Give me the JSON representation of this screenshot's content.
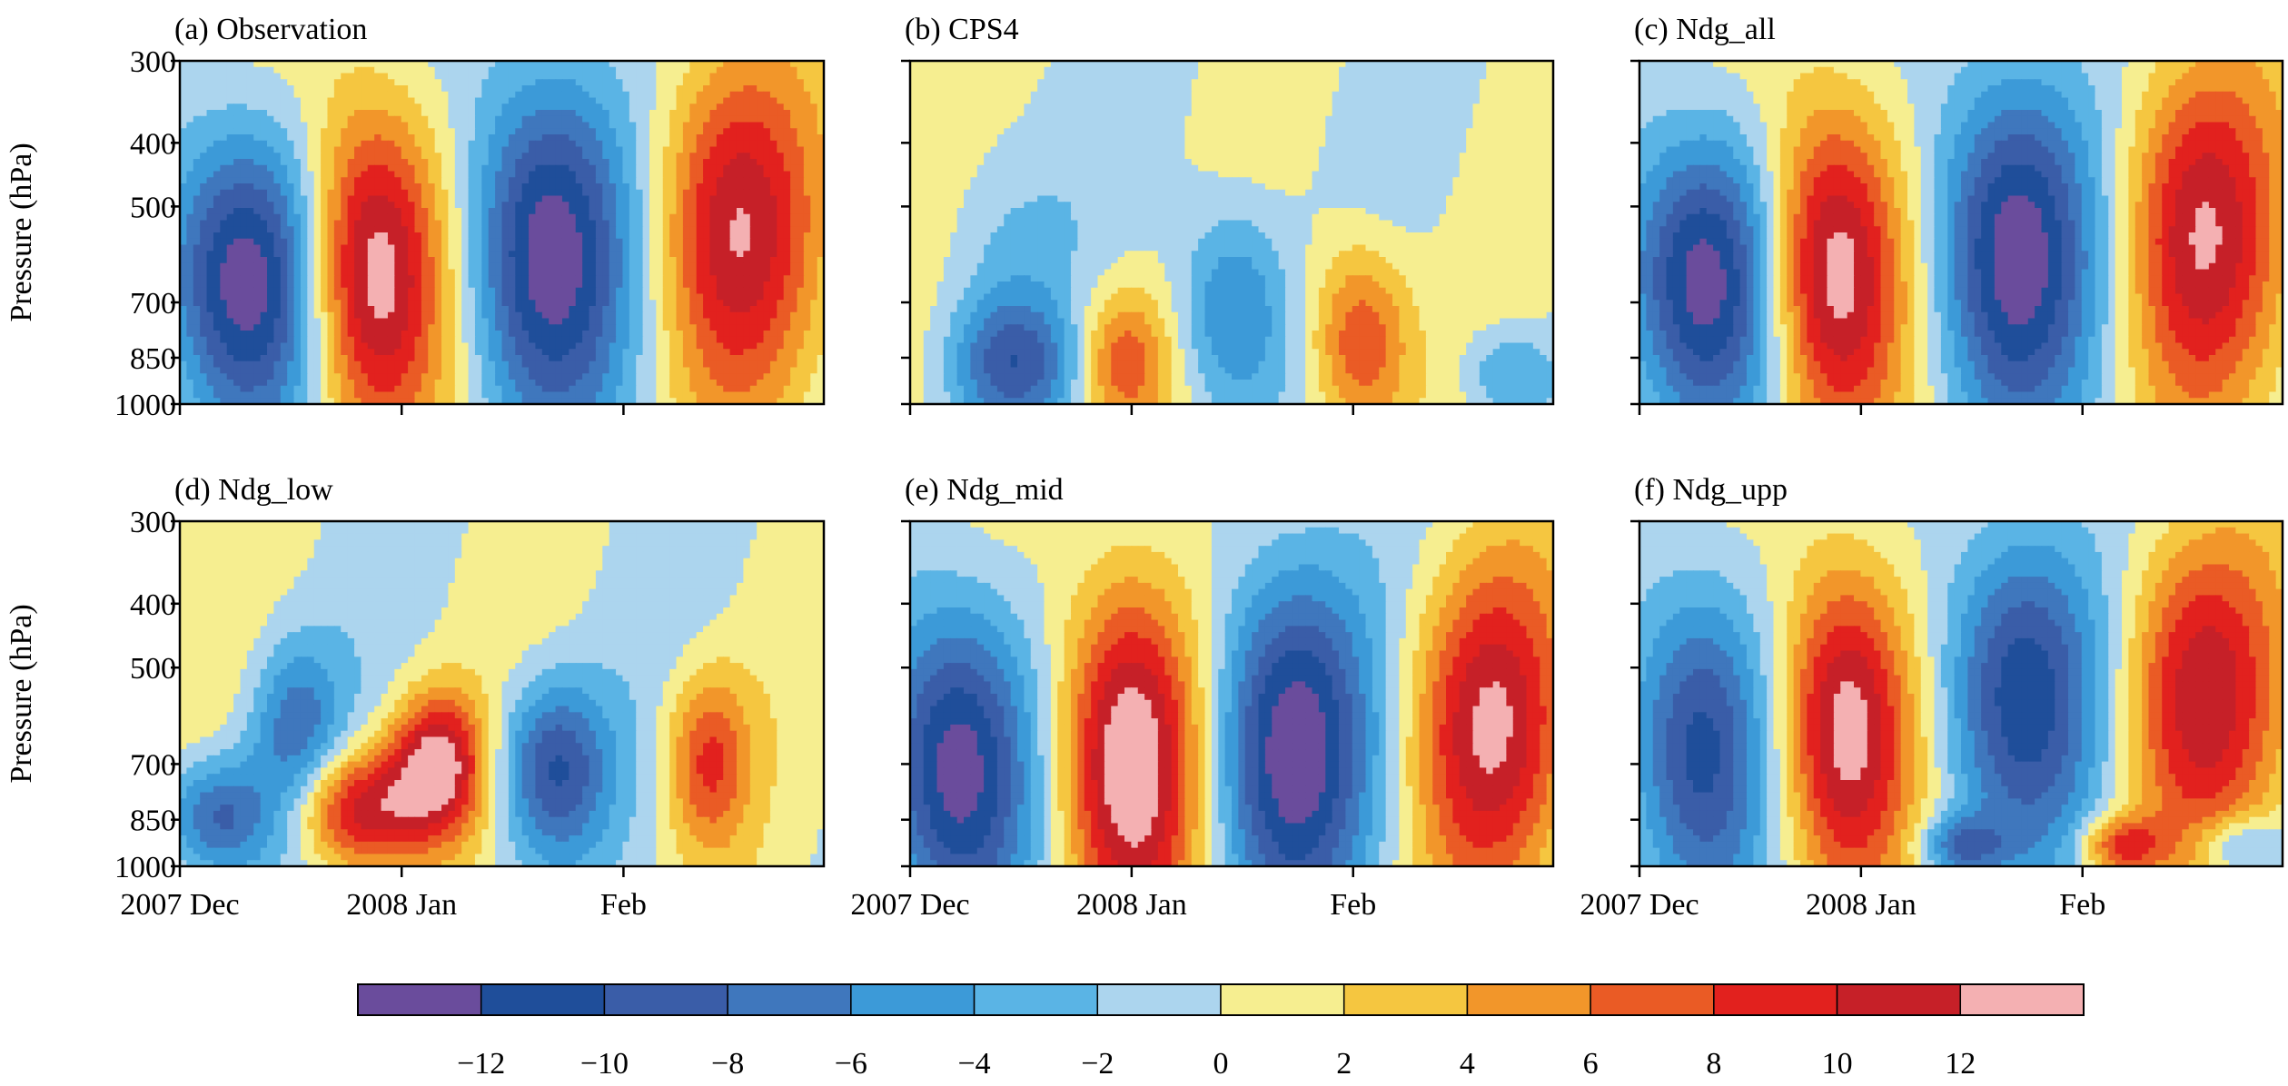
{
  "chart_data": {
    "type": "contour",
    "ylabel": "Pressure (hPa)",
    "yscale": "log",
    "y_ticks": [
      300,
      400,
      500,
      700,
      850,
      1000
    ],
    "ylim": [
      1000,
      300
    ],
    "x_ticks": [
      "2007 Dec",
      "2008 Jan",
      "Feb"
    ],
    "levels": [
      -14,
      -12,
      -10,
      -8,
      -6,
      -4,
      -2,
      0,
      2,
      4,
      6,
      8,
      10,
      12,
      14
    ],
    "colorbar_ticks": [
      "−12",
      "−10",
      "−8",
      "−6",
      "−4",
      "−2",
      "0",
      "2",
      "4",
      "6",
      "8",
      "10",
      "12"
    ],
    "colors": [
      "#6a4c9c",
      "#1f4e9a",
      "#3a5da8",
      "#3f77bd",
      "#3c9ad8",
      "#5ab4e5",
      "#acd5ee",
      "#f6ee90",
      "#f5c640",
      "#f2962a",
      "#ea5b25",
      "#e2211e",
      "#c62028",
      "#f4b0b2"
    ],
    "panels": [
      {
        "title": "(a) Observation",
        "blobs": [
          {
            "x": 0.1,
            "p": 640,
            "amp": -14.5,
            "sx": 0.085,
            "sy": 0.3
          },
          {
            "x": 0.3,
            "p": 620,
            "amp": 14.8,
            "sx": 0.075,
            "sy": 0.34
          },
          {
            "x": 0.57,
            "p": 580,
            "amp": -14.2,
            "sx": 0.085,
            "sy": 0.36
          },
          {
            "x": 0.86,
            "p": 530,
            "amp": 11.5,
            "sx": 0.085,
            "sy": 0.36
          }
        ]
      },
      {
        "title": "(b) CPS4",
        "blobs": [
          {
            "x": 0.16,
            "p": 870,
            "amp": -7.5,
            "sx": 0.07,
            "sy": 0.13
          },
          {
            "x": 0.14,
            "p": 620,
            "amp": -2.5,
            "sx": 0.07,
            "sy": 0.28
          },
          {
            "x": 0.33,
            "p": 860,
            "amp": 7.5,
            "sx": 0.05,
            "sy": 0.15
          },
          {
            "x": 0.5,
            "p": 720,
            "amp": -7.2,
            "sx": 0.06,
            "sy": 0.22
          },
          {
            "x": 0.7,
            "p": 800,
            "amp": 8.8,
            "sx": 0.055,
            "sy": 0.2
          },
          {
            "x": 0.93,
            "p": 900,
            "amp": -5.0,
            "sx": 0.05,
            "sy": 0.1
          }
        ]
      },
      {
        "title": "(c) Ndg_all",
        "blobs": [
          {
            "x": 0.1,
            "p": 640,
            "amp": -14.2,
            "sx": 0.085,
            "sy": 0.3
          },
          {
            "x": 0.3,
            "p": 620,
            "amp": 14.8,
            "sx": 0.075,
            "sy": 0.34
          },
          {
            "x": 0.58,
            "p": 580,
            "amp": -14.0,
            "sx": 0.085,
            "sy": 0.36
          },
          {
            "x": 0.87,
            "p": 540,
            "amp": 11.5,
            "sx": 0.085,
            "sy": 0.36
          }
        ]
      },
      {
        "title": "(d) Ndg_low",
        "blobs": [
          {
            "x": 0.06,
            "p": 840,
            "amp": -9.0,
            "sx": 0.06,
            "sy": 0.12
          },
          {
            "x": 0.18,
            "p": 620,
            "amp": -7.0,
            "sx": 0.05,
            "sy": 0.18
          },
          {
            "x": 0.28,
            "p": 820,
            "amp": 11.8,
            "sx": 0.07,
            "sy": 0.12
          },
          {
            "x": 0.4,
            "p": 700,
            "amp": 13.0,
            "sx": 0.05,
            "sy": 0.14
          },
          {
            "x": 0.58,
            "p": 710,
            "amp": -10.0,
            "sx": 0.06,
            "sy": 0.18
          },
          {
            "x": 0.82,
            "p": 690,
            "amp": 8.2,
            "sx": 0.045,
            "sy": 0.18
          }
        ]
      },
      {
        "title": "(e) Ndg_mid",
        "blobs": [
          {
            "x": 0.07,
            "p": 700,
            "amp": -14.2,
            "sx": 0.08,
            "sy": 0.33
          },
          {
            "x": 0.34,
            "p": 680,
            "amp": 15.0,
            "sx": 0.075,
            "sy": 0.36
          },
          {
            "x": 0.59,
            "p": 650,
            "amp": -13.8,
            "sx": 0.085,
            "sy": 0.36
          },
          {
            "x": 0.9,
            "p": 610,
            "amp": 11.4,
            "sx": 0.085,
            "sy": 0.34
          }
        ]
      },
      {
        "title": "(f) Ndg_upp",
        "blobs": [
          {
            "x": 0.09,
            "p": 650,
            "amp": -11.5,
            "sx": 0.075,
            "sy": 0.33
          },
          {
            "x": 0.32,
            "p": 610,
            "amp": 14.2,
            "sx": 0.07,
            "sy": 0.33
          },
          {
            "x": 0.59,
            "p": 540,
            "amp": -11.8,
            "sx": 0.085,
            "sy": 0.33
          },
          {
            "x": 0.87,
            "p": 540,
            "amp": 11.0,
            "sx": 0.085,
            "sy": 0.33
          },
          {
            "x": 0.5,
            "p": 930,
            "amp": -7.5,
            "sx": 0.045,
            "sy": 0.06
          },
          {
            "x": 0.75,
            "p": 930,
            "amp": 8.5,
            "sx": 0.045,
            "sy": 0.06
          },
          {
            "x": 0.93,
            "p": 930,
            "amp": -6.0,
            "sx": 0.045,
            "sy": 0.06
          }
        ]
      }
    ]
  }
}
